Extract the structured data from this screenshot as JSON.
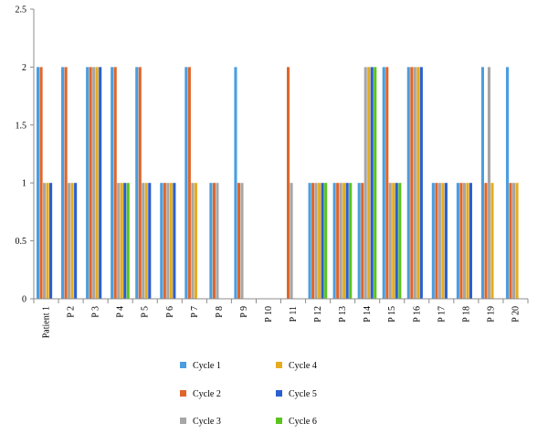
{
  "chart_data": {
    "type": "bar",
    "categories": [
      "Patient 1",
      "P 2",
      "P 3",
      "P 4",
      "P 5",
      "P 6",
      "P 7",
      "P 8",
      "P 9",
      "P 10",
      "P 11",
      "P 12",
      "P 13",
      "P 14",
      "P 15",
      "P 16",
      "P 17",
      "P 18",
      "P 19",
      "P 20"
    ],
    "series": [
      {
        "name": "Cycle 1",
        "color": "#4a9ee0",
        "values": [
          2,
          2,
          2,
          2,
          2,
          1,
          2,
          1,
          2,
          0,
          0,
          1,
          1,
          1,
          2,
          2,
          1,
          1,
          2,
          2
        ]
      },
      {
        "name": "Cycle 2",
        "color": "#e0662a",
        "values": [
          2,
          2,
          2,
          2,
          2,
          1,
          2,
          1,
          1,
          0,
          2,
          1,
          1,
          1,
          2,
          2,
          1,
          1,
          1,
          1
        ]
      },
      {
        "name": "Cycle 3",
        "color": "#a6a6a6",
        "values": [
          1,
          1,
          2,
          1,
          1,
          1,
          1,
          1,
          1,
          0,
          1,
          1,
          1,
          2,
          1,
          2,
          1,
          1,
          2,
          1
        ]
      },
      {
        "name": "Cycle 4",
        "color": "#e6ac1c",
        "values": [
          1,
          1,
          2,
          1,
          1,
          1,
          1,
          0,
          0,
          0,
          0,
          1,
          1,
          2,
          1,
          2,
          1,
          1,
          1,
          1
        ]
      },
      {
        "name": "Cycle 5",
        "color": "#2a5fd0",
        "values": [
          1,
          1,
          2,
          1,
          1,
          1,
          0,
          0,
          0,
          0,
          0,
          1,
          1,
          2,
          1,
          2,
          1,
          1,
          0,
          0
        ]
      },
      {
        "name": "Cycle 6",
        "color": "#5ac41c",
        "values": [
          0,
          0,
          0,
          1,
          0,
          0,
          0,
          0,
          0,
          0,
          0,
          1,
          1,
          2,
          1,
          0,
          0,
          0,
          0,
          0
        ]
      }
    ],
    "yticks": [
      "0",
      "0.5",
      "1",
      "1.5",
      "2",
      "2.5"
    ],
    "ylim": [
      0,
      2.5
    ],
    "grid": false,
    "legend_position": "bottom"
  }
}
